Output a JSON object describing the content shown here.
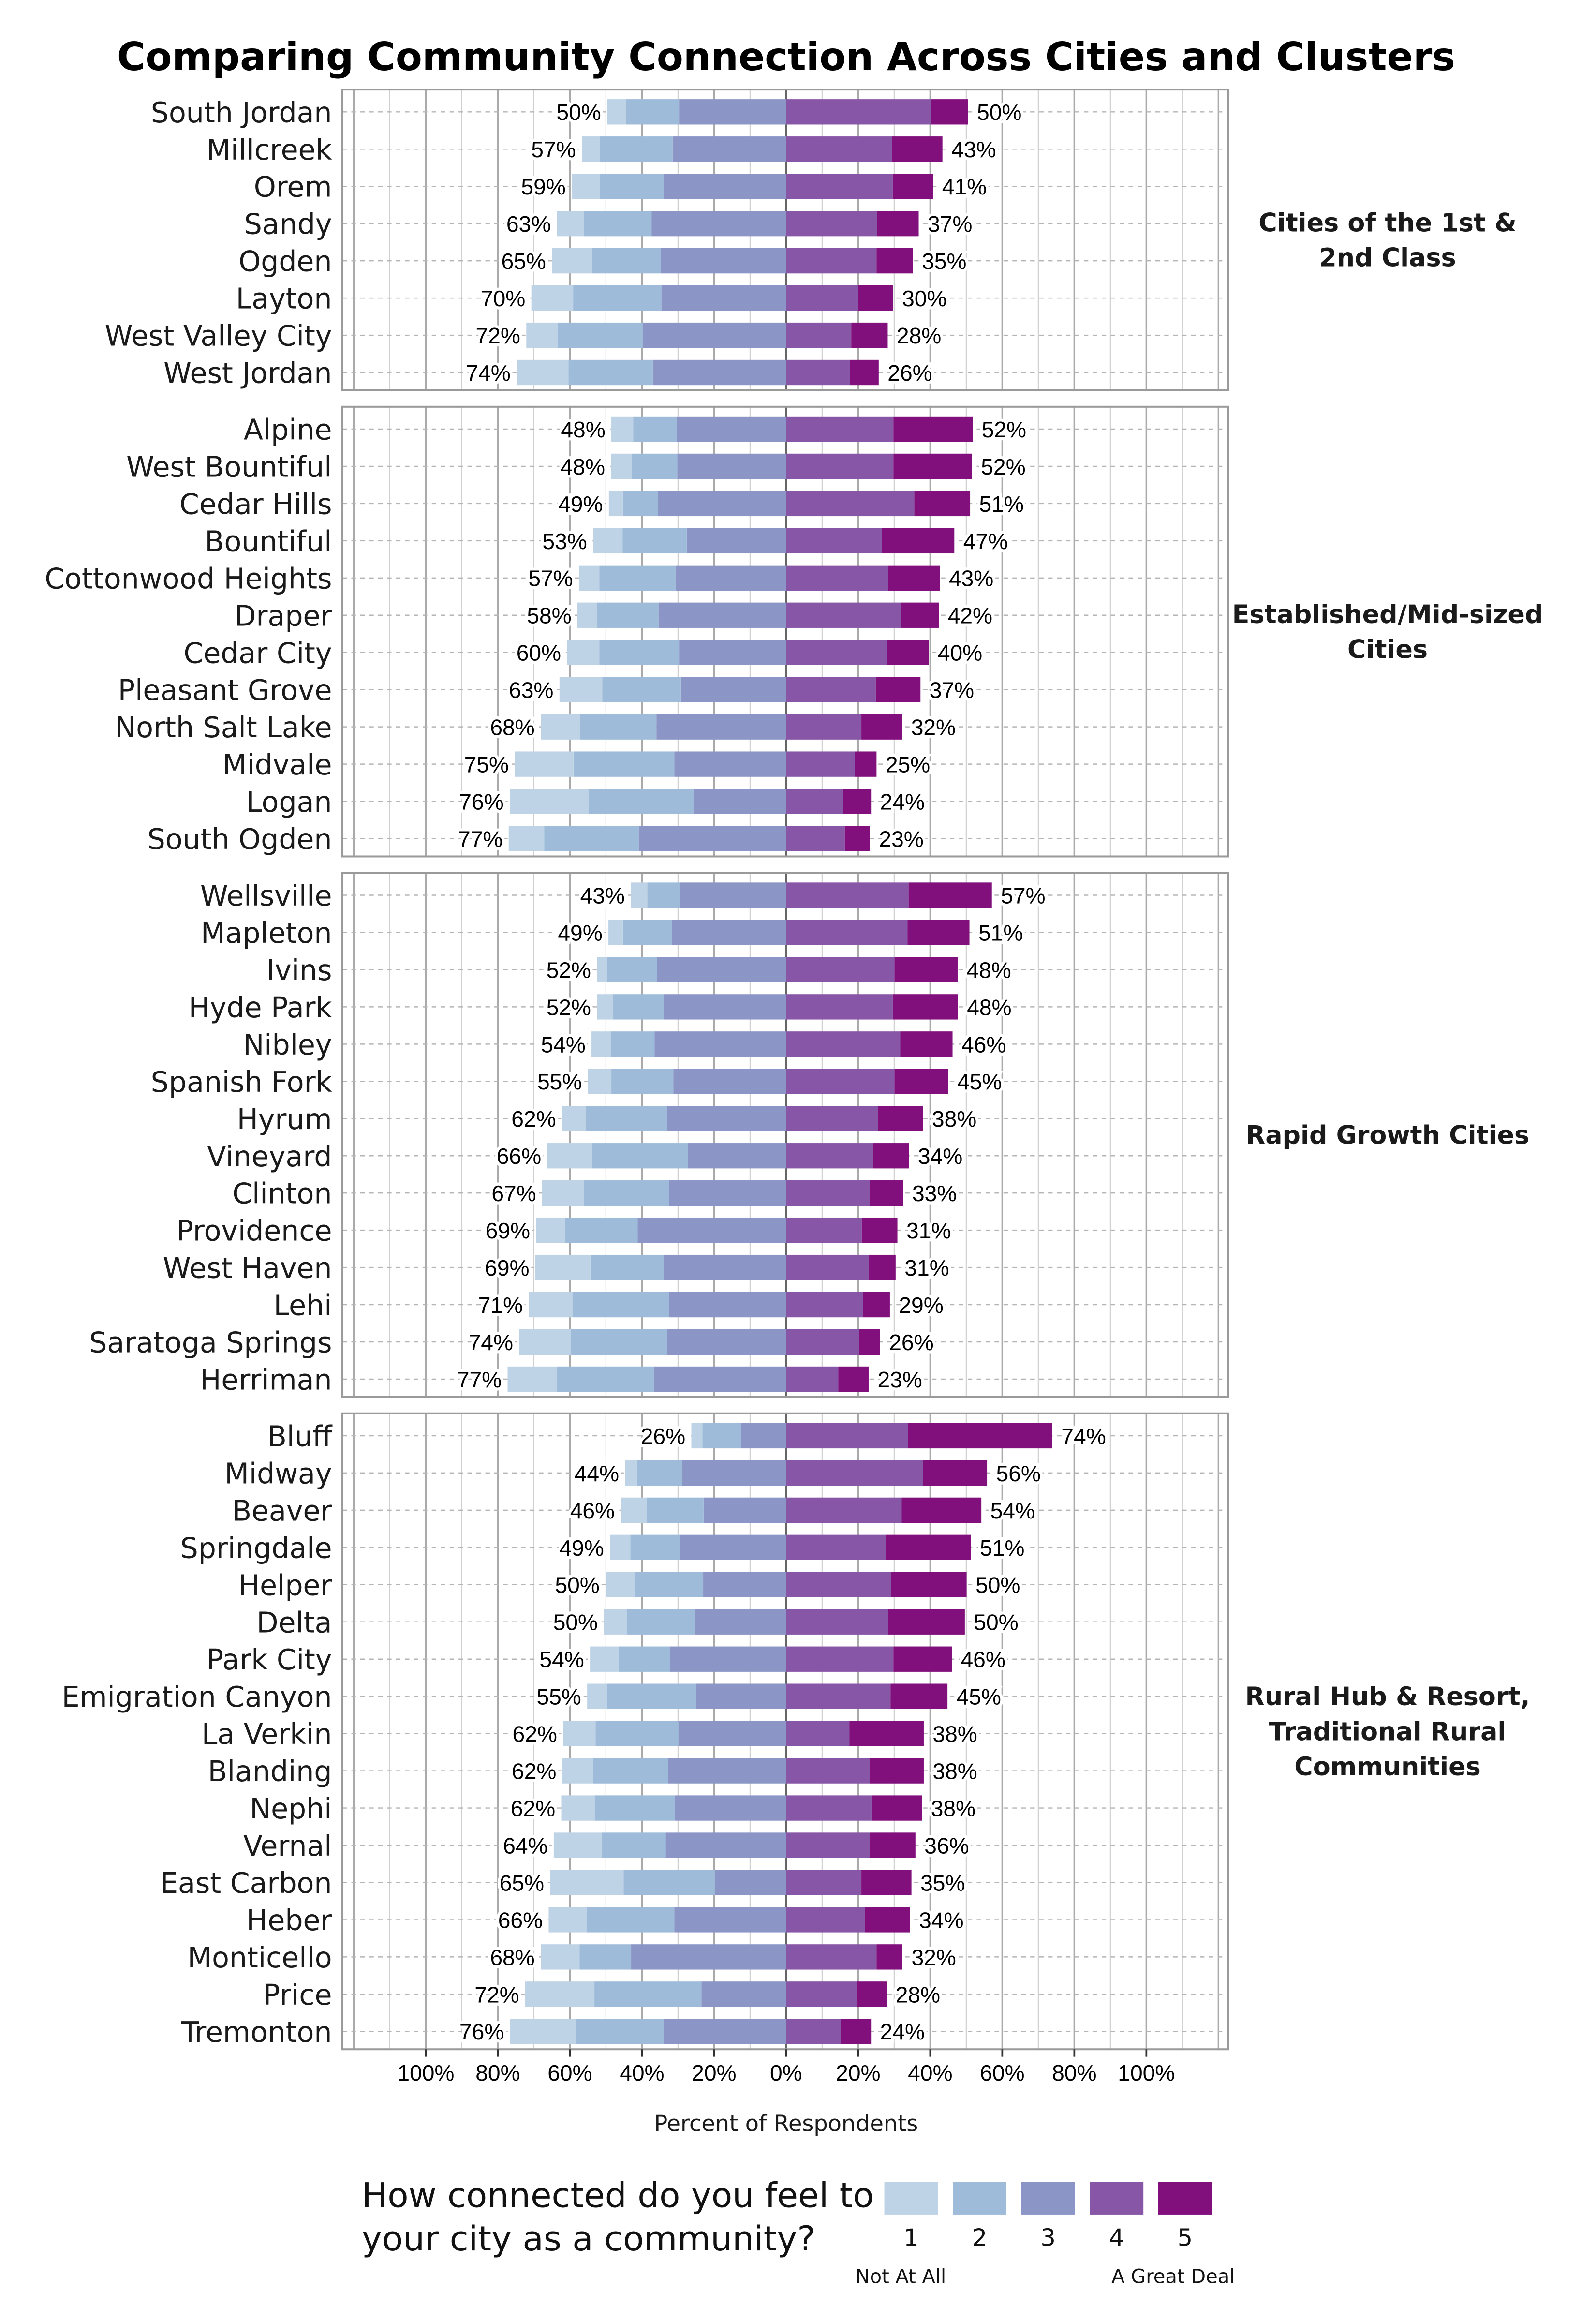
{
  "chart_data": {
    "type": "bar",
    "orientation": "horizontal",
    "stacking": "diverging",
    "title": "Comparing Community Connection Across Cities and Clusters",
    "xlabel": "Percent of Respondents",
    "x_ticks": [
      "100%",
      "80%",
      "60%",
      "40%",
      "20%",
      "0%",
      "20%",
      "40%",
      "60%",
      "80%",
      "100%"
    ],
    "xlim": [
      -100,
      100
    ],
    "grid": true,
    "legend": {
      "placement": "bottom",
      "title_lines": [
        "How connected do you feel to",
        "your city as a community?"
      ],
      "levels": [
        "1",
        "2",
        "3",
        "4",
        "5"
      ],
      "low_label": "Not At All",
      "high_label": "A Great Deal"
    },
    "colors": [
      "#bfd3e6",
      "#9ebcda",
      "#8c96c6",
      "#8856a7",
      "#810f7c"
    ],
    "negative_levels": [
      "1",
      "2",
      "3"
    ],
    "positive_levels": [
      "4",
      "5"
    ],
    "groups": [
      {
        "label_lines": [
          "Cities of the 1st &",
          "2nd Class"
        ],
        "rows": [
          {
            "city": "South Jordan",
            "values": [
              5.3,
              14.7,
              29.7,
              40.3,
              10.2
            ],
            "left_label": "50%",
            "right_label": "50%"
          },
          {
            "city": "Millcreek",
            "values": [
              5.1,
              20.1,
              31.5,
              29.4,
              14.0
            ],
            "left_label": "57%",
            "right_label": "43%"
          },
          {
            "city": "Orem",
            "values": [
              7.9,
              17.6,
              34.0,
              29.6,
              11.2
            ],
            "left_label": "59%",
            "right_label": "41%"
          },
          {
            "city": "Sandy",
            "values": [
              7.4,
              18.9,
              37.3,
              25.3,
              11.5
            ],
            "left_label": "63%",
            "right_label": "37%"
          },
          {
            "city": "Ogden",
            "values": [
              11.2,
              19.0,
              34.8,
              25.1,
              10.1
            ],
            "left_label": "65%",
            "right_label": "35%"
          },
          {
            "city": "Layton",
            "values": [
              11.6,
              24.5,
              34.6,
              20.0,
              9.7
            ],
            "left_label": "70%",
            "right_label": "30%"
          },
          {
            "city": "West Valley City",
            "values": [
              8.8,
              23.5,
              39.8,
              18.1,
              10.1
            ],
            "left_label": "72%",
            "right_label": "28%"
          },
          {
            "city": "West Jordan",
            "values": [
              14.4,
              23.4,
              37.0,
              17.8,
              7.9
            ],
            "left_label": "74%",
            "right_label": "26%"
          }
        ]
      },
      {
        "label_lines": [
          "Established/Mid-sized",
          "Cities"
        ],
        "rows": [
          {
            "city": "Alpine",
            "values": [
              6.1,
              12.1,
              30.3,
              29.8,
              22.0
            ],
            "left_label": "48%",
            "right_label": "52%"
          },
          {
            "city": "West Bountiful",
            "values": [
              5.8,
              12.6,
              30.2,
              29.8,
              21.8
            ],
            "left_label": "48%",
            "right_label": "52%"
          },
          {
            "city": "Cedar Hills",
            "values": [
              3.9,
              9.8,
              35.5,
              35.6,
              15.5
            ],
            "left_label": "49%",
            "right_label": "51%"
          },
          {
            "city": "Bountiful",
            "values": [
              8.2,
              17.8,
              27.6,
              26.6,
              20.1
            ],
            "left_label": "53%",
            "right_label": "47%"
          },
          {
            "city": "Cottonwood Heights",
            "values": [
              5.7,
              21.1,
              30.7,
              28.3,
              14.4
            ],
            "left_label": "57%",
            "right_label": "43%"
          },
          {
            "city": "Draper",
            "values": [
              5.4,
              17.1,
              35.4,
              31.8,
              10.6
            ],
            "left_label": "58%",
            "right_label": "42%"
          },
          {
            "city": "Cedar City",
            "values": [
              9.0,
              22.1,
              29.7,
              28.0,
              11.6
            ],
            "left_label": "60%",
            "right_label": "40%"
          },
          {
            "city": "Pleasant Grove",
            "values": [
              11.9,
              21.8,
              29.2,
              24.9,
              12.4
            ],
            "left_label": "63%",
            "right_label": "37%"
          },
          {
            "city": "North Salt Lake",
            "values": [
              10.9,
              21.2,
              36.0,
              20.9,
              11.3
            ],
            "left_label": "68%",
            "right_label": "32%"
          },
          {
            "city": "Midvale",
            "values": [
              16.3,
              28.0,
              31.0,
              19.1,
              6.0
            ],
            "left_label": "75%",
            "right_label": "25%"
          },
          {
            "city": "Logan",
            "values": [
              22.0,
              29.1,
              25.6,
              15.8,
              7.8
            ],
            "left_label": "76%",
            "right_label": "24%"
          },
          {
            "city": "South Ogden",
            "values": [
              9.9,
              26.2,
              40.9,
              16.3,
              7.0
            ],
            "left_label": "77%",
            "right_label": "23%"
          }
        ]
      },
      {
        "label_lines": [
          "Rapid Growth Cities"
        ],
        "rows": [
          {
            "city": "Wellsville",
            "values": [
              4.6,
              9.1,
              29.4,
              34.0,
              23.1
            ],
            "left_label": "43%",
            "right_label": "57%"
          },
          {
            "city": "Mapleton",
            "values": [
              4.0,
              13.7,
              31.6,
              33.7,
              17.2
            ],
            "left_label": "49%",
            "right_label": "51%"
          },
          {
            "city": "Ivins",
            "values": [
              2.9,
              13.8,
              35.8,
              30.1,
              17.5
            ],
            "left_label": "52%",
            "right_label": "48%"
          },
          {
            "city": "Hyde Park",
            "values": [
              4.5,
              14.0,
              34.0,
              29.6,
              18.1
            ],
            "left_label": "52%",
            "right_label": "48%"
          },
          {
            "city": "Nibley",
            "values": [
              5.4,
              12.1,
              36.5,
              31.7,
              14.5
            ],
            "left_label": "54%",
            "right_label": "46%"
          },
          {
            "city": "Spanish Fork",
            "values": [
              6.5,
              17.2,
              31.3,
              30.1,
              14.9
            ],
            "left_label": "55%",
            "right_label": "45%"
          },
          {
            "city": "Hyrum",
            "values": [
              6.7,
              22.5,
              33.0,
              25.5,
              12.5
            ],
            "left_label": "62%",
            "right_label": "38%"
          },
          {
            "city": "Vineyard",
            "values": [
              12.5,
              26.5,
              27.3,
              24.2,
              9.9
            ],
            "left_label": "66%",
            "right_label": "34%"
          },
          {
            "city": "Clinton",
            "values": [
              11.5,
              23.8,
              32.4,
              23.3,
              9.2
            ],
            "left_label": "67%",
            "right_label": "33%"
          },
          {
            "city": "Providence",
            "values": [
              8.0,
              20.2,
              41.2,
              21.0,
              9.9
            ],
            "left_label": "69%",
            "right_label": "31%"
          },
          {
            "city": "West Haven",
            "values": [
              15.3,
              20.3,
              34.0,
              22.9,
              7.5
            ],
            "left_label": "69%",
            "right_label": "31%"
          },
          {
            "city": "Lehi",
            "values": [
              12.1,
              26.9,
              32.4,
              21.3,
              7.5
            ],
            "left_label": "71%",
            "right_label": "29%"
          },
          {
            "city": "Saratoga Springs",
            "values": [
              14.4,
              26.7,
              33.0,
              20.3,
              5.8
            ],
            "left_label": "74%",
            "right_label": "26%"
          },
          {
            "city": "Herriman",
            "values": [
              13.7,
              26.9,
              36.7,
              14.5,
              8.4
            ],
            "left_label": "77%",
            "right_label": "23%"
          }
        ]
      },
      {
        "label_lines": [
          "Rural Hub & Resort,",
          "Traditional Rural",
          "Communities"
        ],
        "rows": [
          {
            "city": "Bluff",
            "values": [
              3.1,
              10.8,
              12.4,
              33.8,
              40.1
            ],
            "left_label": "26%",
            "right_label": "74%"
          },
          {
            "city": "Midway",
            "values": [
              3.3,
              12.5,
              28.9,
              38.0,
              17.8
            ],
            "left_label": "44%",
            "right_label": "56%"
          },
          {
            "city": "Beaver",
            "values": [
              7.3,
              15.7,
              22.9,
              32.1,
              22.1
            ],
            "left_label": "46%",
            "right_label": "54%"
          },
          {
            "city": "Springdale",
            "values": [
              5.7,
              13.8,
              29.4,
              27.6,
              23.7
            ],
            "left_label": "49%",
            "right_label": "51%"
          },
          {
            "city": "Helper",
            "values": [
              8.3,
              18.8,
              23.0,
              29.2,
              20.9
            ],
            "left_label": "50%",
            "right_label": "50%"
          },
          {
            "city": "Delta",
            "values": [
              6.4,
              18.9,
              25.3,
              28.3,
              21.3
            ],
            "left_label": "50%",
            "right_label": "50%"
          },
          {
            "city": "Park City",
            "values": [
              7.9,
              14.3,
              32.2,
              29.8,
              16.2
            ],
            "left_label": "54%",
            "right_label": "46%"
          },
          {
            "city": "Emigration Canyon",
            "values": [
              5.5,
              24.8,
              24.9,
              29.0,
              15.8
            ],
            "left_label": "55%",
            "right_label": "45%"
          },
          {
            "city": "La Verkin",
            "values": [
              9.0,
              23.0,
              29.9,
              17.6,
              20.6
            ],
            "left_label": "62%",
            "right_label": "38%"
          },
          {
            "city": "Blanding",
            "values": [
              8.5,
              20.9,
              32.7,
              23.3,
              14.9
            ],
            "left_label": "62%",
            "right_label": "38%"
          },
          {
            "city": "Nephi",
            "values": [
              9.4,
              22.1,
              30.9,
              23.7,
              14.0
            ],
            "left_label": "62%",
            "right_label": "38%"
          },
          {
            "city": "Vernal",
            "values": [
              13.3,
              17.8,
              33.4,
              23.3,
              12.6
            ],
            "left_label": "64%",
            "right_label": "36%"
          },
          {
            "city": "East Carbon",
            "values": [
              20.4,
              25.3,
              19.8,
              20.9,
              13.9
            ],
            "left_label": "65%",
            "right_label": "35%"
          },
          {
            "city": "Heber",
            "values": [
              10.6,
              24.3,
              31.0,
              21.9,
              12.5
            ],
            "left_label": "66%",
            "right_label": "34%"
          },
          {
            "city": "Monticello",
            "values": [
              10.8,
              14.3,
              43.0,
              25.1,
              7.2
            ],
            "left_label": "68%",
            "right_label": "32%"
          },
          {
            "city": "Price",
            "values": [
              19.2,
              29.7,
              23.5,
              19.7,
              8.2
            ],
            "left_label": "72%",
            "right_label": "28%"
          },
          {
            "city": "Tremonton",
            "values": [
              18.4,
              24.2,
              34.0,
              15.2,
              8.4
            ],
            "left_label": "76%",
            "right_label": "24%"
          }
        ]
      }
    ]
  }
}
